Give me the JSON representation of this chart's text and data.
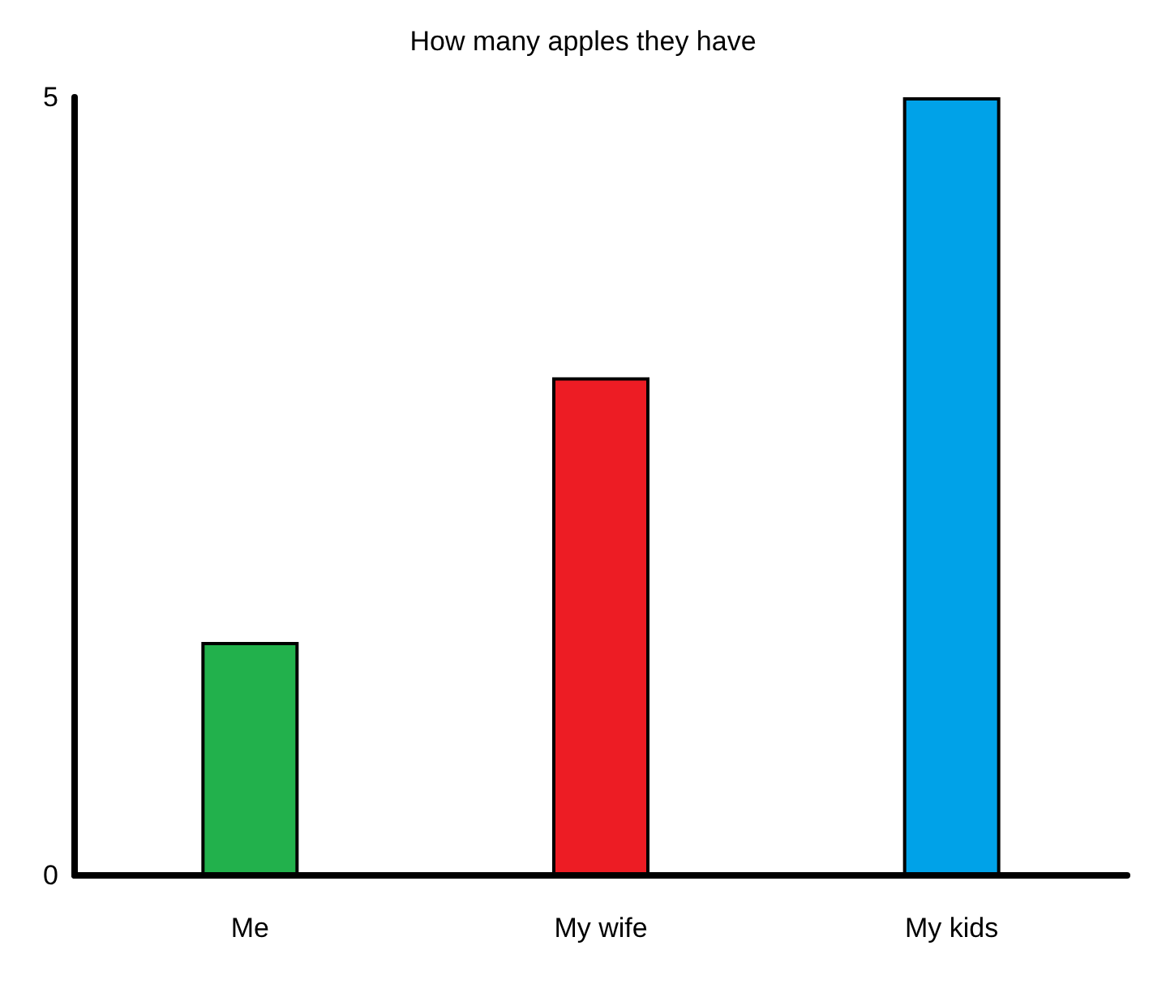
{
  "chart_data": {
    "type": "bar",
    "title": "How many apples they have",
    "categories": [
      "Me",
      "My wife",
      "My kids"
    ],
    "values": [
      1.5,
      3.2,
      5
    ],
    "colors": [
      "#22b14c",
      "#ed1c24",
      "#00a2e8"
    ],
    "ylim": [
      0,
      5
    ],
    "yticks": [
      0,
      5
    ],
    "grid": false
  }
}
